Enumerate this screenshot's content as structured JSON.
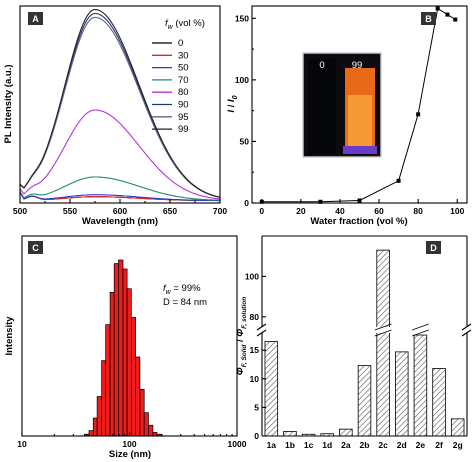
{
  "colors": {
    "curve_0": "#000000",
    "curve_30": "#e0262c",
    "curve_50": "#2a3cd0",
    "curve_70": "#1f8a74",
    "curve_80": "#b335d6",
    "curve_90": "#1b3a6b",
    "curve_95": "#6a5c8c",
    "curve_99": "#222222",
    "hist_fill": "#ee1c1c",
    "bar_hatch": "#555555"
  },
  "chart_data": [
    {
      "panel": "A",
      "type": "line",
      "xlabel": "Wavelength (nm)",
      "ylabel": "PL Intensity (a.u.)",
      "xlim": [
        500,
        700
      ],
      "x_ticks": [
        "500",
        "550",
        "600",
        "650",
        "700"
      ],
      "legend_title_prefix": "f",
      "legend_title_sub": "w",
      "legend_title_suffix": " (vol %)",
      "legend_position": "top-right",
      "peak_x": 575,
      "series": [
        {
          "name": "0",
          "peak": 0.02,
          "color": "#000000"
        },
        {
          "name": "30",
          "peak": 0.02,
          "color": "#e0262c"
        },
        {
          "name": "50",
          "peak": 0.03,
          "color": "#2a3cd0"
        },
        {
          "name": "70",
          "peak": 0.12,
          "color": "#1f8a74"
        },
        {
          "name": "80",
          "peak": 0.46,
          "color": "#b335d6"
        },
        {
          "name": "90",
          "peak": 0.95,
          "color": "#1b3a6b"
        },
        {
          "name": "95",
          "peak": 0.93,
          "color": "#6a5c8c"
        },
        {
          "name": "99",
          "peak": 0.97,
          "color": "#222222"
        }
      ]
    },
    {
      "panel": "B",
      "type": "line",
      "xlabel": "Water fraction (vol %)",
      "ylabel_main": "I",
      "ylabel_sep": " / ",
      "ylabel_sub_main": "I",
      "ylabel_sub": "0",
      "xlim": [
        -5,
        105
      ],
      "ylim": [
        0,
        160
      ],
      "x_ticks": [
        0,
        20,
        40,
        60,
        80,
        100
      ],
      "y_ticks": [
        0,
        50,
        100,
        150
      ],
      "x": [
        0,
        30,
        50,
        70,
        80,
        90,
        95,
        99
      ],
      "y": [
        1,
        1,
        2,
        18,
        72,
        158,
        153,
        149
      ],
      "inset_labels": [
        "0",
        "99"
      ]
    },
    {
      "panel": "C",
      "type": "bar",
      "xlabel": "Size (nm)",
      "ylabel": "Intensity",
      "xscale": "log",
      "xlim": [
        10,
        1000
      ],
      "x_ticks": [
        "10",
        "100",
        "1000"
      ],
      "annotation_fw_prefix": "f",
      "annotation_fw_sub": "w",
      "annotation_fw_value": " = 99%",
      "annotation_d": "D = 84 nm",
      "bins": [
        38,
        42,
        46,
        50,
        55,
        60,
        66,
        72,
        79,
        87,
        95,
        104,
        114,
        125,
        137,
        150,
        165,
        180
      ],
      "values": [
        1,
        3,
        10,
        22,
        42,
        62,
        80,
        96,
        98,
        93,
        82,
        66,
        44,
        26,
        13,
        6,
        2,
        1
      ]
    },
    {
      "panel": "D",
      "type": "bar",
      "ylabel_phi": "Φ",
      "ylabel_sub_solid": "F, Solid",
      "ylabel_sub_solution": "F, solution",
      "y_ticks_lower": [
        "0",
        "5",
        "10",
        "15"
      ],
      "y_ticks_upper": [
        "80",
        "100"
      ],
      "categories": [
        "1a",
        "1b",
        "1c",
        "1d",
        "2a",
        "2b",
        "2c",
        "2d",
        "2e",
        "2f",
        "2g"
      ],
      "values": [
        16.5,
        0.8,
        0.3,
        0.4,
        1.2,
        12.3,
        113,
        14.7,
        71,
        11.8,
        3.0
      ]
    }
  ]
}
